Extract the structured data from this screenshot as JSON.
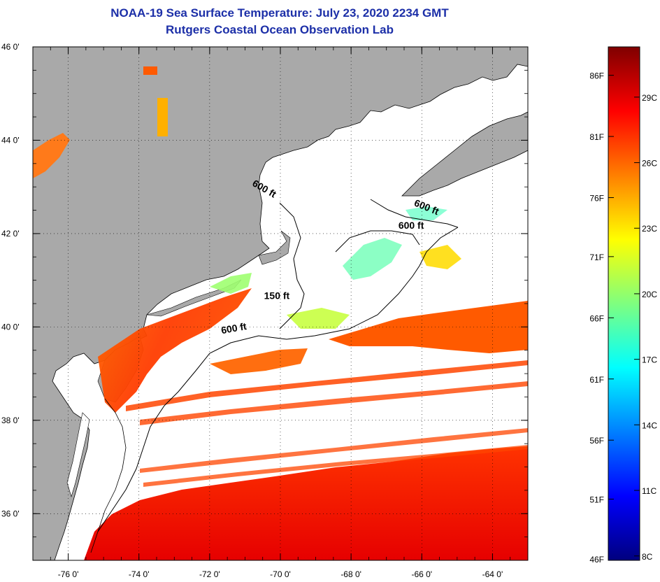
{
  "title": {
    "line1": "NOAA-19 Sea Surface Temperature:  July 23, 2020 2234 GMT",
    "line2": "Rutgers Coastal Ocean Observation Lab"
  },
  "map": {
    "lat_range": [
      35,
      46
    ],
    "lon_range": [
      -77,
      -63
    ],
    "lat_ticks": [
      {
        "value": 46,
        "label": "46 0'"
      },
      {
        "value": 44,
        "label": "44 0'"
      },
      {
        "value": 42,
        "label": "42 0'"
      },
      {
        "value": 40,
        "label": "40 0'"
      },
      {
        "value": 38,
        "label": "38 0'"
      },
      {
        "value": 36,
        "label": "36 0'"
      }
    ],
    "lon_ticks": [
      {
        "value": -76,
        "label": "-76 0'"
      },
      {
        "value": -74,
        "label": "-74 0'"
      },
      {
        "value": -72,
        "label": "-72 0'"
      },
      {
        "value": -70,
        "label": "-70 0'"
      },
      {
        "value": -68,
        "label": "-68 0'"
      },
      {
        "value": -66,
        "label": "-66 0'"
      },
      {
        "value": -64,
        "label": "-64 0'"
      }
    ],
    "contour_labels": [
      {
        "text": "600 ft",
        "lon": -70.5,
        "lat": 42.9,
        "rotate": 30
      },
      {
        "text": "600 ft",
        "lon": -65.9,
        "lat": 42.5,
        "rotate": 22
      },
      {
        "text": "600 ft",
        "lon": -66.3,
        "lat": 42.1,
        "rotate": 0
      },
      {
        "text": "150 ft",
        "lon": -70.1,
        "lat": 40.6,
        "rotate": 0
      },
      {
        "text": "600 ft",
        "lon": -71.3,
        "lat": 39.9,
        "rotate": -10
      }
    ],
    "colors": {
      "land": "#a9a9a9",
      "cloud": "#ffffff"
    }
  },
  "colorbar": {
    "f_labels": [
      {
        "temp_c": 30,
        "label": "86F"
      },
      {
        "temp_c": 27.2,
        "label": "81F"
      },
      {
        "temp_c": 24.4,
        "label": "76F"
      },
      {
        "temp_c": 21.7,
        "label": "71F"
      },
      {
        "temp_c": 18.9,
        "label": "66F"
      },
      {
        "temp_c": 16.1,
        "label": "61F"
      },
      {
        "temp_c": 13.3,
        "label": "56F"
      },
      {
        "temp_c": 10.6,
        "label": "51F"
      },
      {
        "temp_c": 7.8,
        "label": "46F"
      }
    ],
    "c_labels": [
      {
        "temp_c": 29,
        "label": "29C"
      },
      {
        "temp_c": 26,
        "label": "26C"
      },
      {
        "temp_c": 23,
        "label": "23C"
      },
      {
        "temp_c": 20,
        "label": "20C"
      },
      {
        "temp_c": 17,
        "label": "17C"
      },
      {
        "temp_c": 14,
        "label": "14C"
      },
      {
        "temp_c": 11,
        "label": "11C"
      },
      {
        "temp_c": 8,
        "label": "8C"
      }
    ],
    "range_c": [
      7.8,
      31.3
    ],
    "stops": [
      "#00007f",
      "#0000ff",
      "#007fff",
      "#00ffff",
      "#7fff7f",
      "#ffff00",
      "#ff7f00",
      "#ff0000",
      "#7f0000"
    ]
  }
}
